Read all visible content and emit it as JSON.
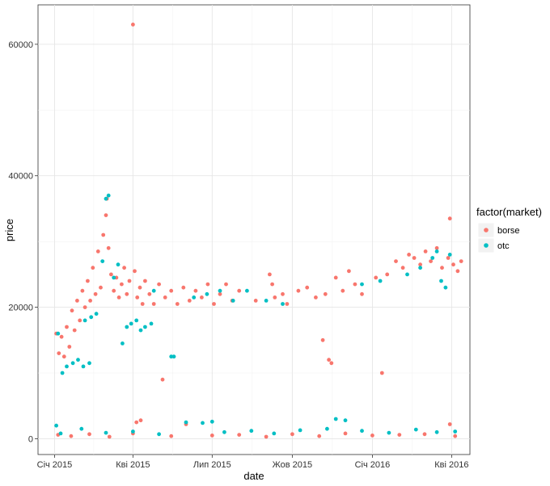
{
  "chart_data": {
    "type": "scatter",
    "xlabel": "date",
    "ylabel": "price",
    "x_ticks": [
      "Січ 2015",
      "Кві 2015",
      "Лип 2015",
      "Жов 2015",
      "Січ 2016",
      "Кві 2016"
    ],
    "x_tick_dates": [
      "2015-01-01",
      "2015-04-01",
      "2015-07-01",
      "2015-10-01",
      "2016-01-01",
      "2016-04-01"
    ],
    "xlim": [
      "2014-12-13",
      "2016-04-22"
    ],
    "y_ticks": [
      0,
      20000,
      40000,
      60000
    ],
    "y_tick_labels": [
      "0",
      "20000",
      "40000",
      "60000"
    ],
    "ylim": [
      -2400,
      66000
    ],
    "grid": true,
    "legend": {
      "title": "factor(market)",
      "position": "right",
      "entries": [
        "borse",
        "otc"
      ]
    },
    "series": [
      {
        "name": "borse",
        "color": "#F8766D",
        "points": [
          [
            "2015-01-03",
            16000
          ],
          [
            "2015-01-06",
            13000
          ],
          [
            "2015-01-09",
            15500
          ],
          [
            "2015-01-12",
            12500
          ],
          [
            "2015-01-15",
            17000
          ],
          [
            "2015-01-18",
            14000
          ],
          [
            "2015-01-21",
            19500
          ],
          [
            "2015-01-24",
            16500
          ],
          [
            "2015-01-27",
            21000
          ],
          [
            "2015-01-30",
            18000
          ],
          [
            "2015-02-02",
            22500
          ],
          [
            "2015-02-05",
            20000
          ],
          [
            "2015-02-08",
            24000
          ],
          [
            "2015-02-11",
            21000
          ],
          [
            "2015-02-14",
            26000
          ],
          [
            "2015-02-17",
            22000
          ],
          [
            "2015-02-20",
            28500
          ],
          [
            "2015-02-23",
            23000
          ],
          [
            "2015-02-26",
            31000
          ],
          [
            "2015-03-01",
            34000
          ],
          [
            "2015-03-02",
            36500
          ],
          [
            "2015-03-04",
            29000
          ],
          [
            "2015-03-07",
            25000
          ],
          [
            "2015-03-10",
            22500
          ],
          [
            "2015-03-13",
            24500
          ],
          [
            "2015-03-16",
            21500
          ],
          [
            "2015-03-19",
            23500
          ],
          [
            "2015-03-22",
            26000
          ],
          [
            "2015-03-25",
            22000
          ],
          [
            "2015-03-28",
            24000
          ],
          [
            "2015-04-01",
            63000
          ],
          [
            "2015-04-03",
            25500
          ],
          [
            "2015-04-06",
            21500
          ],
          [
            "2015-04-09",
            23000
          ],
          [
            "2015-04-12",
            20500
          ],
          [
            "2015-04-15",
            24000
          ],
          [
            "2015-04-20",
            22000
          ],
          [
            "2015-04-25",
            20500
          ],
          [
            "2015-05-01",
            23500
          ],
          [
            "2015-05-05",
            9000
          ],
          [
            "2015-05-08",
            21500
          ],
          [
            "2015-05-15",
            22500
          ],
          [
            "2015-05-22",
            20500
          ],
          [
            "2015-05-29",
            23000
          ],
          [
            "2015-06-05",
            21000
          ],
          [
            "2015-06-12",
            22500
          ],
          [
            "2015-06-19",
            21500
          ],
          [
            "2015-06-26",
            23500
          ],
          [
            "2015-07-03",
            20500
          ],
          [
            "2015-07-10",
            22000
          ],
          [
            "2015-07-17",
            23500
          ],
          [
            "2015-07-24",
            21000
          ],
          [
            "2015-08-01",
            22500
          ],
          [
            "2015-08-20",
            21000
          ],
          [
            "2015-09-05",
            25000
          ],
          [
            "2015-09-08",
            23500
          ],
          [
            "2015-09-11",
            21500
          ],
          [
            "2015-09-20",
            22000
          ],
          [
            "2015-09-25",
            20500
          ],
          [
            "2015-10-08",
            22500
          ],
          [
            "2015-10-18",
            23000
          ],
          [
            "2015-10-28",
            21500
          ],
          [
            "2015-11-05",
            15000
          ],
          [
            "2015-11-08",
            22000
          ],
          [
            "2015-11-12",
            12000
          ],
          [
            "2015-11-15",
            11500
          ],
          [
            "2015-11-20",
            24500
          ],
          [
            "2015-11-28",
            22500
          ],
          [
            "2015-12-05",
            25500
          ],
          [
            "2015-12-12",
            23500
          ],
          [
            "2015-12-20",
            22000
          ],
          [
            "2016-01-05",
            24500
          ],
          [
            "2016-01-12",
            10000
          ],
          [
            "2016-01-18",
            25000
          ],
          [
            "2016-01-28",
            27000
          ],
          [
            "2016-02-05",
            26000
          ],
          [
            "2016-02-12",
            28000
          ],
          [
            "2016-02-18",
            27500
          ],
          [
            "2016-02-25",
            26500
          ],
          [
            "2016-03-02",
            28500
          ],
          [
            "2016-03-08",
            27000
          ],
          [
            "2016-03-15",
            29000
          ],
          [
            "2016-03-21",
            26000
          ],
          [
            "2016-03-28",
            27500
          ],
          [
            "2016-03-30",
            33500
          ],
          [
            "2016-04-03",
            26500
          ],
          [
            "2016-04-08",
            25500
          ],
          [
            "2016-04-12",
            27000
          ],
          [
            "2015-01-05",
            600
          ],
          [
            "2015-01-20",
            400
          ],
          [
            "2015-02-10",
            700
          ],
          [
            "2015-03-05",
            300
          ],
          [
            "2015-04-01",
            800
          ],
          [
            "2015-04-05",
            2500
          ],
          [
            "2015-04-10",
            2800
          ],
          [
            "2015-05-15",
            400
          ],
          [
            "2015-06-01",
            2200
          ],
          [
            "2015-07-01",
            500
          ],
          [
            "2015-08-01",
            600
          ],
          [
            "2015-09-01",
            300
          ],
          [
            "2015-10-01",
            700
          ],
          [
            "2015-11-01",
            400
          ],
          [
            "2015-12-01",
            800
          ],
          [
            "2016-01-01",
            500
          ],
          [
            "2016-02-01",
            600
          ],
          [
            "2016-03-01",
            700
          ],
          [
            "2016-03-30",
            2200
          ],
          [
            "2016-04-05",
            400
          ]
        ]
      },
      {
        "name": "otc",
        "color": "#00BFC4",
        "points": [
          [
            "2015-01-03",
            2000
          ],
          [
            "2015-01-05",
            16000
          ],
          [
            "2015-01-10",
            10000
          ],
          [
            "2015-01-15",
            11000
          ],
          [
            "2015-01-22",
            11500
          ],
          [
            "2015-01-28",
            12000
          ],
          [
            "2015-02-03",
            11000
          ],
          [
            "2015-02-10",
            11500
          ],
          [
            "2015-02-05",
            18000
          ],
          [
            "2015-02-12",
            18500
          ],
          [
            "2015-02-18",
            19000
          ],
          [
            "2015-02-25",
            27000
          ],
          [
            "2015-03-01",
            36500
          ],
          [
            "2015-03-04",
            37000
          ],
          [
            "2015-03-10",
            24500
          ],
          [
            "2015-03-15",
            26500
          ],
          [
            "2015-03-20",
            14500
          ],
          [
            "2015-03-25",
            17000
          ],
          [
            "2015-03-30",
            17500
          ],
          [
            "2015-04-05",
            18000
          ],
          [
            "2015-04-10",
            16500
          ],
          [
            "2015-04-15",
            17000
          ],
          [
            "2015-04-22",
            17500
          ],
          [
            "2015-04-25",
            22500
          ],
          [
            "2015-05-15",
            12500
          ],
          [
            "2015-05-18",
            12500
          ],
          [
            "2015-06-10",
            21500
          ],
          [
            "2015-06-25",
            22000
          ],
          [
            "2015-07-10",
            22500
          ],
          [
            "2015-07-25",
            21000
          ],
          [
            "2015-08-10",
            22500
          ],
          [
            "2015-09-01",
            21000
          ],
          [
            "2015-09-20",
            20500
          ],
          [
            "2015-12-20",
            23500
          ],
          [
            "2016-01-10",
            24000
          ],
          [
            "2016-02-10",
            25000
          ],
          [
            "2016-02-25",
            26000
          ],
          [
            "2016-03-10",
            27500
          ],
          [
            "2016-03-15",
            28500
          ],
          [
            "2016-03-20",
            24000
          ],
          [
            "2016-03-25",
            23000
          ],
          [
            "2016-03-30",
            28000
          ],
          [
            "2015-01-08",
            800
          ],
          [
            "2015-02-01",
            1500
          ],
          [
            "2015-03-01",
            900
          ],
          [
            "2015-04-01",
            1100
          ],
          [
            "2015-05-01",
            700
          ],
          [
            "2015-06-01",
            2500
          ],
          [
            "2015-06-20",
            2400
          ],
          [
            "2015-07-01",
            2600
          ],
          [
            "2015-07-15",
            1000
          ],
          [
            "2015-08-15",
            1200
          ],
          [
            "2015-09-10",
            800
          ],
          [
            "2015-10-10",
            1300
          ],
          [
            "2015-11-10",
            1500
          ],
          [
            "2015-11-20",
            3000
          ],
          [
            "2015-12-01",
            2800
          ],
          [
            "2015-12-20",
            1200
          ],
          [
            "2016-01-20",
            900
          ],
          [
            "2016-02-20",
            1400
          ],
          [
            "2016-03-15",
            1000
          ],
          [
            "2016-04-05",
            1100
          ]
        ]
      }
    ]
  }
}
